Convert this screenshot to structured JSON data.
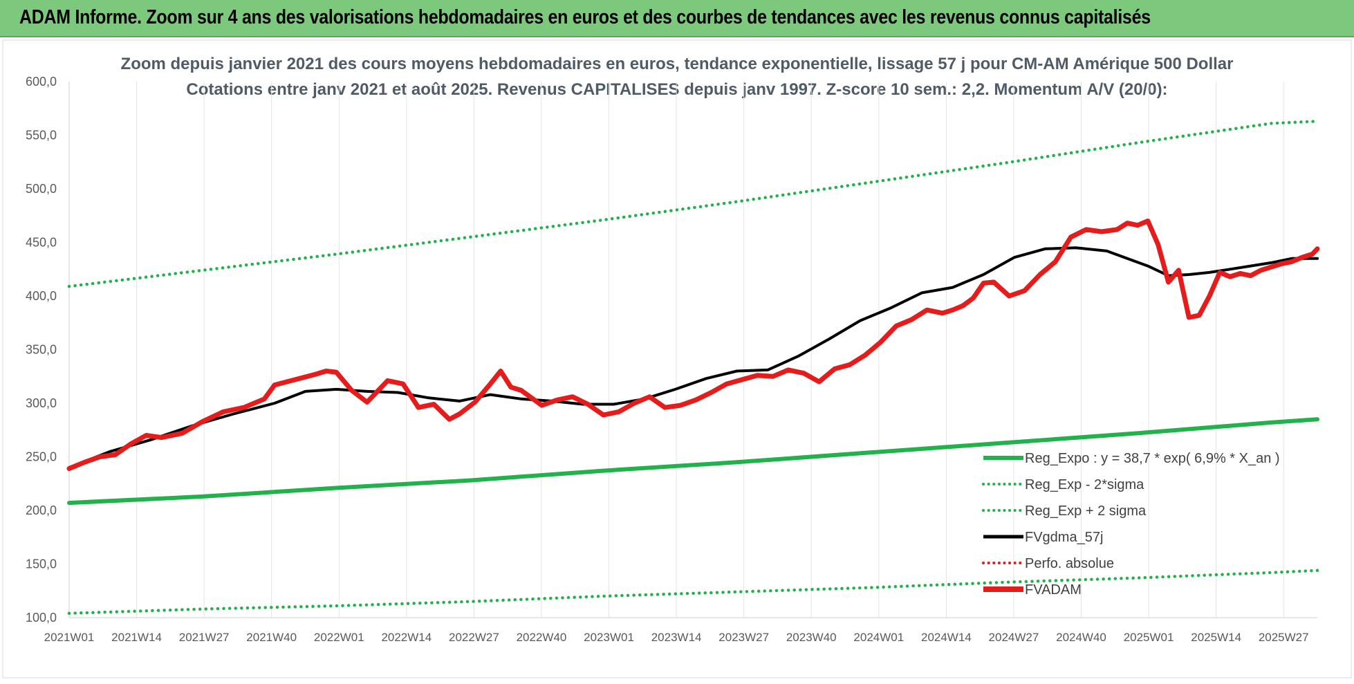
{
  "header": {
    "title": "ADAM Informe. Zoom sur 4 ans des valorisations hebdomadaires en euros et des courbes de tendances avec les revenus connus capitalisés"
  },
  "chart_data": {
    "type": "line",
    "title": "Zoom depuis janvier 2021 des cours moyens hebdomadaires en euros, tendance exponentielle, lissage 57 j pour CM-AM Amérique 500 Dollar",
    "subtitle": "Cotations entre janv 2021 et août 2025. Revenus CAPITALISES depuis janv 1997. Z-score 10 sem.: 2,2. Momentum A/V (20/0):",
    "xlabel": "",
    "ylabel": "",
    "ylim": [
      100,
      600
    ],
    "y_ticks": [
      "100,0",
      "150,0",
      "200,0",
      "250,0",
      "300,0",
      "350,0",
      "400,0",
      "450,0",
      "500,0",
      "550,0",
      "600,0"
    ],
    "x_ticks": [
      "2021W01",
      "2021W14",
      "2021W27",
      "2021W40",
      "2022W01",
      "2022W14",
      "2022W27",
      "2022W40",
      "2023W01",
      "2023W14",
      "2023W27",
      "2023W40",
      "2024W01",
      "2024W14",
      "2024W27",
      "2024W40",
      "2025W01",
      "2025W14",
      "2025W27"
    ],
    "x_range_weeks": [
      0,
      243
    ],
    "grid": "vertical",
    "legend_position": "bottom-right",
    "legend": [
      {
        "label": "Reg_Expo : y = 38,7 * exp( 6,9% *  X_an )",
        "color": "#22b14c",
        "style": "solid"
      },
      {
        "label": "Reg_Exp - 2*sigma",
        "color": "#22b14c",
        "style": "dotted"
      },
      {
        "label": "Reg_Exp + 2 sigma",
        "color": "#22b14c",
        "style": "dotted"
      },
      {
        "label": "FVgdma_57j",
        "color": "#000000",
        "style": "solid"
      },
      {
        "label": "Perfo. absolue",
        "color": "#e51c1c",
        "style": "dotted"
      },
      {
        "label": "FVADAM",
        "color": "#e51c1c",
        "style": "thick"
      }
    ],
    "series": [
      {
        "name": "Reg_Expo : y = 38,7 * exp( 6,9% *  X_an )",
        "color": "#22b14c",
        "x": [
          0,
          26,
          52,
          78,
          104,
          130,
          156,
          182,
          208,
          234,
          243
        ],
        "values": [
          207,
          213,
          221,
          228,
          237,
          245,
          254,
          263,
          272,
          282,
          285
        ]
      },
      {
        "name": "Reg_Exp - 2*sigma",
        "color": "#22b14c",
        "x": [
          0,
          26,
          52,
          78,
          104,
          130,
          156,
          182,
          208,
          234,
          243
        ],
        "values": [
          104,
          108,
          111,
          115,
          120,
          124,
          128,
          133,
          137,
          142,
          144
        ]
      },
      {
        "name": "Reg_Exp + 2 sigma",
        "color": "#22b14c",
        "x": [
          0,
          26,
          52,
          78,
          104,
          130,
          156,
          182,
          208,
          234,
          243
        ],
        "values": [
          409,
          424,
          439,
          455,
          471,
          488,
          506,
          524,
          543,
          561,
          563
        ]
      },
      {
        "name": "FVgdma_57j",
        "color": "#000000",
        "x": [
          0,
          8,
          16,
          24,
          32,
          40,
          46,
          52,
          58,
          64,
          70,
          76,
          82,
          88,
          94,
          100,
          106,
          112,
          118,
          124,
          130,
          136,
          142,
          148,
          154,
          160,
          166,
          172,
          178,
          184,
          190,
          196,
          202,
          206,
          210,
          214,
          218,
          222,
          226,
          230,
          234,
          238,
          243
        ],
        "values": [
          240,
          255,
          266,
          279,
          290,
          300,
          311,
          313,
          311,
          310,
          305,
          302,
          308,
          304,
          302,
          299,
          299,
          304,
          313,
          323,
          330,
          331,
          344,
          360,
          377,
          389,
          403,
          408,
          420,
          436,
          444,
          445,
          442,
          435,
          428,
          419,
          420,
          422,
          425,
          428,
          431,
          435,
          435
        ]
      },
      {
        "name": "FVADAM",
        "color": "#e51c1c",
        "x": [
          0,
          3,
          6,
          9,
          12,
          15,
          18,
          22,
          26,
          30,
          34,
          38,
          40,
          44,
          48,
          50,
          52,
          55,
          58,
          62,
          65,
          68,
          71,
          74,
          76,
          79,
          82,
          84,
          86,
          88,
          92,
          95,
          98,
          101,
          104,
          107,
          110,
          113,
          116,
          119,
          122,
          125,
          128,
          131,
          134,
          137,
          140,
          143,
          146,
          149,
          152,
          155,
          158,
          161,
          164,
          167,
          170,
          172,
          174,
          176,
          178,
          180,
          183,
          186,
          189,
          192,
          195,
          198,
          201,
          204,
          206,
          208,
          210,
          212,
          214,
          216,
          218,
          220,
          222,
          224,
          226,
          228,
          230,
          232,
          234,
          236,
          238,
          240,
          242,
          243
        ],
        "values": [
          239,
          245,
          250,
          252,
          262,
          270,
          268,
          272,
          283,
          292,
          296,
          304,
          317,
          322,
          327,
          330,
          329,
          312,
          301,
          321,
          318,
          296,
          299,
          285,
          290,
          301,
          318,
          330,
          315,
          312,
          298,
          303,
          306,
          299,
          289,
          292,
          300,
          306,
          296,
          298,
          303,
          310,
          318,
          322,
          326,
          325,
          331,
          328,
          320,
          332,
          336,
          345,
          357,
          372,
          378,
          387,
          384,
          387,
          391,
          398,
          412,
          413,
          400,
          405,
          420,
          432,
          455,
          462,
          460,
          462,
          468,
          466,
          470,
          448,
          413,
          424,
          380,
          382,
          400,
          422,
          418,
          421,
          419,
          424,
          427,
          430,
          432,
          436,
          439,
          444
        ]
      }
    ]
  }
}
